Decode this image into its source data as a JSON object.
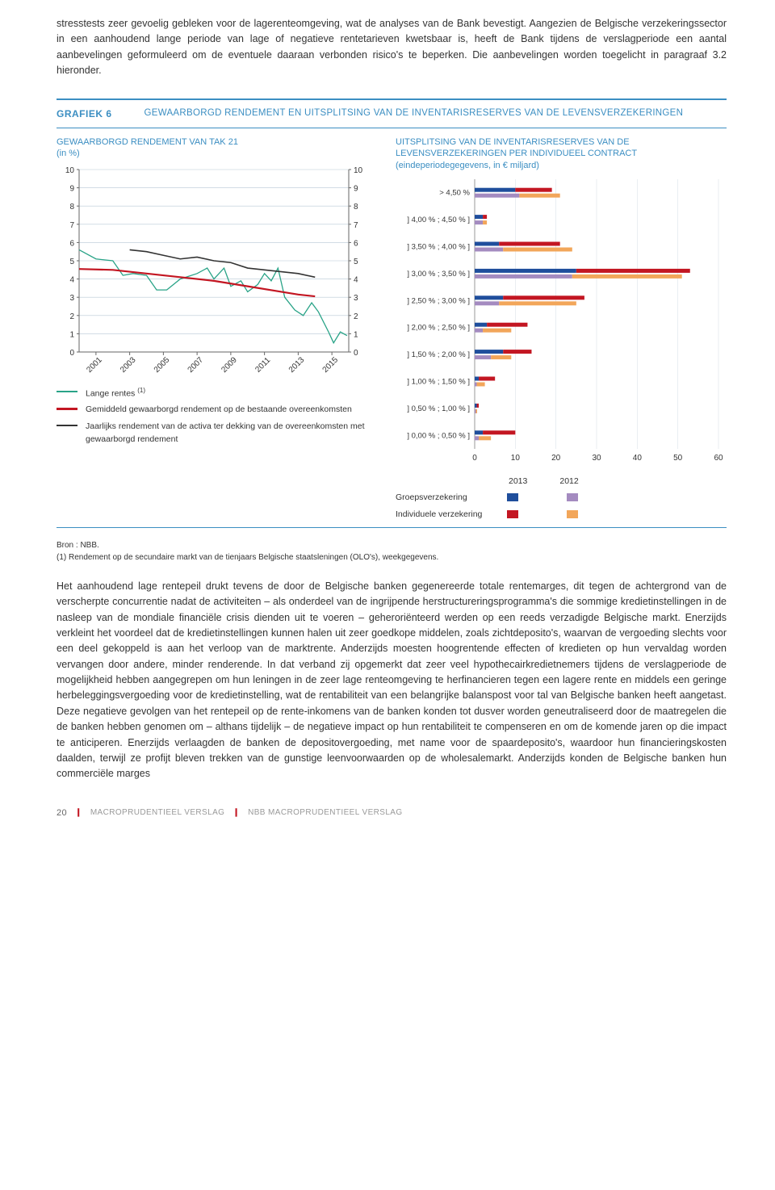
{
  "intro_para": "stresstests zeer gevoelig gebleken voor de lagerenteomgeving, wat de analyses van de Bank bevestigt. Aangezien de Belgische verzekeringssector in een aanhoudend lange periode van lage of negatieve rentetarieven kwetsbaar is, heeft de Bank tijdens de verslagperiode een aantal aanbevelingen geformuleerd om de eventuele daaraan verbonden risico's te beperken. Die aanbevelingen worden toegelicht in paragraaf 3.2 hieronder.",
  "grafiek_label": "GRAFIEK 6",
  "grafiek_title": "GEWAARBORGD RENDEMENT EN UITSPLITSING VAN DE INVENTARISRESERVES VAN DE LEVENSVERZEKERINGEN",
  "left_chart": {
    "title": "GEWAARBORGD RENDEMENT VAN TAK 21\n(in %)",
    "ylim": [
      0,
      10
    ],
    "ytick_step": 1,
    "x_years": [
      2001,
      2003,
      2005,
      2007,
      2009,
      2011,
      2013,
      2015
    ],
    "x_domain": [
      2000,
      2016
    ],
    "bg": "#ffffff",
    "grid_color": "#b8c8d6",
    "series": {
      "long_rate": {
        "color": "#29a387",
        "label": "Lange rentes ",
        "sup": "(1)",
        "points": [
          [
            2000,
            5.6
          ],
          [
            2001,
            5.1
          ],
          [
            2002,
            5.0
          ],
          [
            2002.6,
            4.2
          ],
          [
            2003.2,
            4.3
          ],
          [
            2004,
            4.2
          ],
          [
            2004.6,
            3.4
          ],
          [
            2005.2,
            3.4
          ],
          [
            2006,
            4.0
          ],
          [
            2007,
            4.3
          ],
          [
            2007.6,
            4.6
          ],
          [
            2008,
            4.0
          ],
          [
            2008.6,
            4.6
          ],
          [
            2009,
            3.6
          ],
          [
            2009.6,
            3.9
          ],
          [
            2010,
            3.3
          ],
          [
            2010.6,
            3.7
          ],
          [
            2011,
            4.3
          ],
          [
            2011.4,
            3.9
          ],
          [
            2011.8,
            4.6
          ],
          [
            2012.2,
            3.0
          ],
          [
            2012.8,
            2.3
          ],
          [
            2013.3,
            2.0
          ],
          [
            2013.8,
            2.7
          ],
          [
            2014.2,
            2.2
          ],
          [
            2014.8,
            1.1
          ],
          [
            2015.1,
            0.5
          ],
          [
            2015.5,
            1.1
          ],
          [
            2015.9,
            0.9
          ]
        ]
      },
      "avg_guar": {
        "color": "#c31622",
        "label": "Gemiddeld gewaarborgd rendement op de bestaande overeenkomsten",
        "points": [
          [
            2000,
            4.55
          ],
          [
            2002,
            4.5
          ],
          [
            2004,
            4.3
          ],
          [
            2006,
            4.1
          ],
          [
            2008,
            3.9
          ],
          [
            2010,
            3.6
          ],
          [
            2012,
            3.3
          ],
          [
            2013,
            3.15
          ],
          [
            2014,
            3.05
          ]
        ]
      },
      "annual_ret": {
        "color": "#333333",
        "label": "Jaarlijks rendement van de activa ter dekking van de overeenkomsten met gewaarborgd rendement",
        "points": [
          [
            2003,
            5.6
          ],
          [
            2004,
            5.5
          ],
          [
            2005,
            5.3
          ],
          [
            2006,
            5.1
          ],
          [
            2007,
            5.2
          ],
          [
            2008,
            5.0
          ],
          [
            2009,
            4.9
          ],
          [
            2010,
            4.6
          ],
          [
            2011,
            4.5
          ],
          [
            2012,
            4.4
          ],
          [
            2013,
            4.3
          ],
          [
            2014,
            4.1
          ]
        ]
      }
    }
  },
  "right_chart": {
    "title": "UITSPLITSING VAN DE INVENTARISRESERVES VAN DE LEVENSVERZEKERINGEN PER INDIVIDUEEL CONTRACT\n(eindeperiodegegevens, in € miljard)",
    "xlim": [
      0,
      60
    ],
    "xtick_step": 10,
    "categories": [
      "> 4,50 %",
      "] 4,00 % ; 4,50 % ]",
      "] 3,50 % ; 4,00 % ]",
      "] 3,00 % ; 3,50 % ]",
      "] 2,50 % ; 3,00 % ]",
      "] 2,00 % ; 2,50 % ]",
      "] 1,50 % ; 2,00 % ]",
      "] 1,00 % ; 1,50 % ]",
      "] 0,50 % ; 1,00 % ]",
      "] 0,00 % ; 0,50 % ]"
    ],
    "series_colors": {
      "groep_2013": "#1f4e9c",
      "indiv_2013": "#c31622",
      "groep_2012": "#a48bc0",
      "indiv_2012": "#f2a65a"
    },
    "rows": [
      {
        "g13": 10,
        "i13": 9,
        "g12": 11,
        "i12": 10
      },
      {
        "g13": 2,
        "i13": 1,
        "g12": 2,
        "i12": 1
      },
      {
        "g13": 6,
        "i13": 15,
        "g12": 7,
        "i12": 17
      },
      {
        "g13": 25,
        "i13": 28,
        "g12": 24,
        "i12": 27
      },
      {
        "g13": 7,
        "i13": 20,
        "g12": 6,
        "i12": 19
      },
      {
        "g13": 3,
        "i13": 10,
        "g12": 2,
        "i12": 7
      },
      {
        "g13": 7,
        "i13": 7,
        "g12": 4,
        "i12": 5
      },
      {
        "g13": 1,
        "i13": 4,
        "g12": 0.5,
        "i12": 2
      },
      {
        "g13": 0.5,
        "i13": 0.5,
        "g12": 0.3,
        "i12": 0.3
      },
      {
        "g13": 2,
        "i13": 8,
        "g12": 1,
        "i12": 3
      }
    ],
    "legend_year_2013": "2013",
    "legend_year_2012": "2012",
    "legend_groeps": "Groepsverzekering",
    "legend_indiv": "Individuele verzekering"
  },
  "source_line": "Bron : NBB.",
  "source_note": "(1) Rendement op de secundaire markt van de tienjaars Belgische staatsleningen (OLO's), weekgegevens.",
  "body_para": "Het aanhoudend lage rentepeil drukt tevens de door de Belgische banken gegenereerde totale rentemarges, dit tegen de achtergrond van de verscherpte concurrentie nadat de activiteiten – als onderdeel van de ingrijpende herstructureringsprogramma's die sommige kredietinstellingen in de nasleep van de mondiale financiële crisis dienden uit te voeren – geheroriënteerd werden op een reeds verzadigde Belgische markt. Enerzijds verkleint het voordeel dat de kredietinstellingen kunnen halen uit zeer goedkope middelen, zoals zichtdeposito's, waarvan de vergoeding slechts voor een deel gekoppeld is aan het verloop van de marktrente. Anderzijds moesten hoogrentende effecten of kredieten op hun vervaldag worden vervangen door andere, minder renderende. In dat verband zij opgemerkt dat zeer veel hypothecairkredietnemers tijdens de verslagperiode de mogelijkheid hebben aangegrepen om hun leningen in de zeer lage renteomgeving te herfinancieren tegen een lagere rente en middels een geringe herbeleggingsvergoeding voor de kredietinstelling, wat de rentabiliteit van een belangrijke balanspost voor tal van Belgische banken heeft aangetast. Deze negatieve gevolgen van het rentepeil op de rente-inkomens van de banken konden tot dusver worden geneutraliseerd door de maatregelen die de banken hebben genomen om – althans tijdelijk – de negatieve impact op hun rentabiliteit te compenseren en om de komende jaren op die impact te anticiperen. Enerzijds verlaagden de banken de depositovergoeding, met name voor de spaardeposito's, waardoor hun financieringskosten daalden, terwijl ze profijt bleven trekken van de gunstige leenvoorwaarden op de wholesalemarkt. Anderzijds konden de Belgische banken hun commerciële marges",
  "footer_page": "20",
  "footer_a": "MACROPRUDENTIEEL VERSLAG",
  "footer_b": "NBB MACROPRUDENTIEEL VERSLAG"
}
